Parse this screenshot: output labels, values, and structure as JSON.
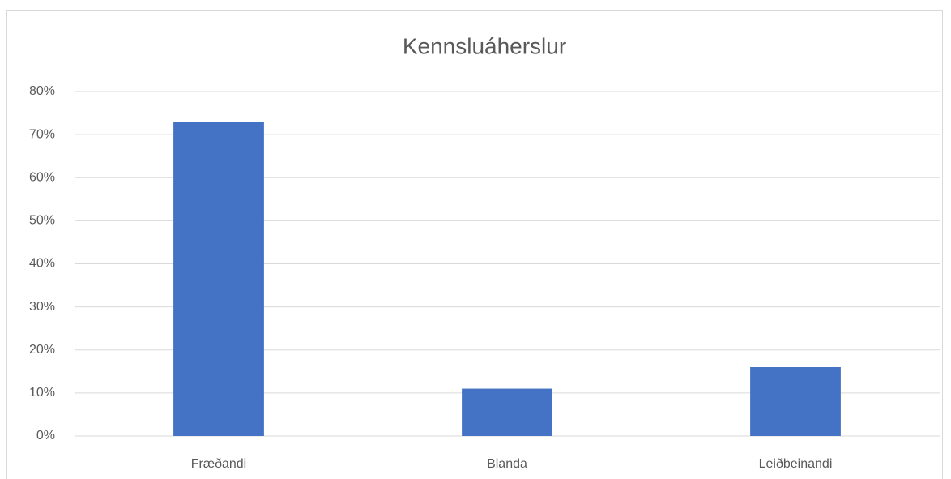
{
  "chart_data": {
    "type": "bar",
    "title": "Kennsluáherslur",
    "categories": [
      "Fræðandi",
      "Blanda",
      "Leiðbeinandi"
    ],
    "values": [
      73,
      11,
      16
    ],
    "color": "#4472c4",
    "ylim": [
      0,
      80
    ],
    "yticks": [
      {
        "value": 0,
        "label": "0%"
      },
      {
        "value": 10,
        "label": "10%"
      },
      {
        "value": 20,
        "label": "20%"
      },
      {
        "value": 30,
        "label": "30%"
      },
      {
        "value": 40,
        "label": "40%"
      },
      {
        "value": 50,
        "label": "50%"
      },
      {
        "value": 60,
        "label": "60%"
      },
      {
        "value": 70,
        "label": "70%"
      },
      {
        "value": 80,
        "label": "80%"
      }
    ],
    "grid": true
  }
}
